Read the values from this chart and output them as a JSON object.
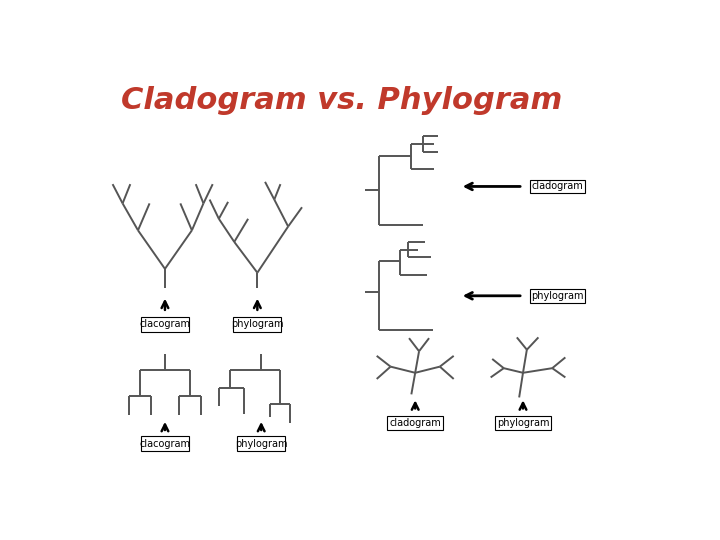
{
  "title": "Cladogram vs. Phylogram",
  "title_color": "#c0392b",
  "title_fontsize": 22,
  "bg_color": "#ffffff",
  "line_color": "#555555",
  "lw": 1.4
}
